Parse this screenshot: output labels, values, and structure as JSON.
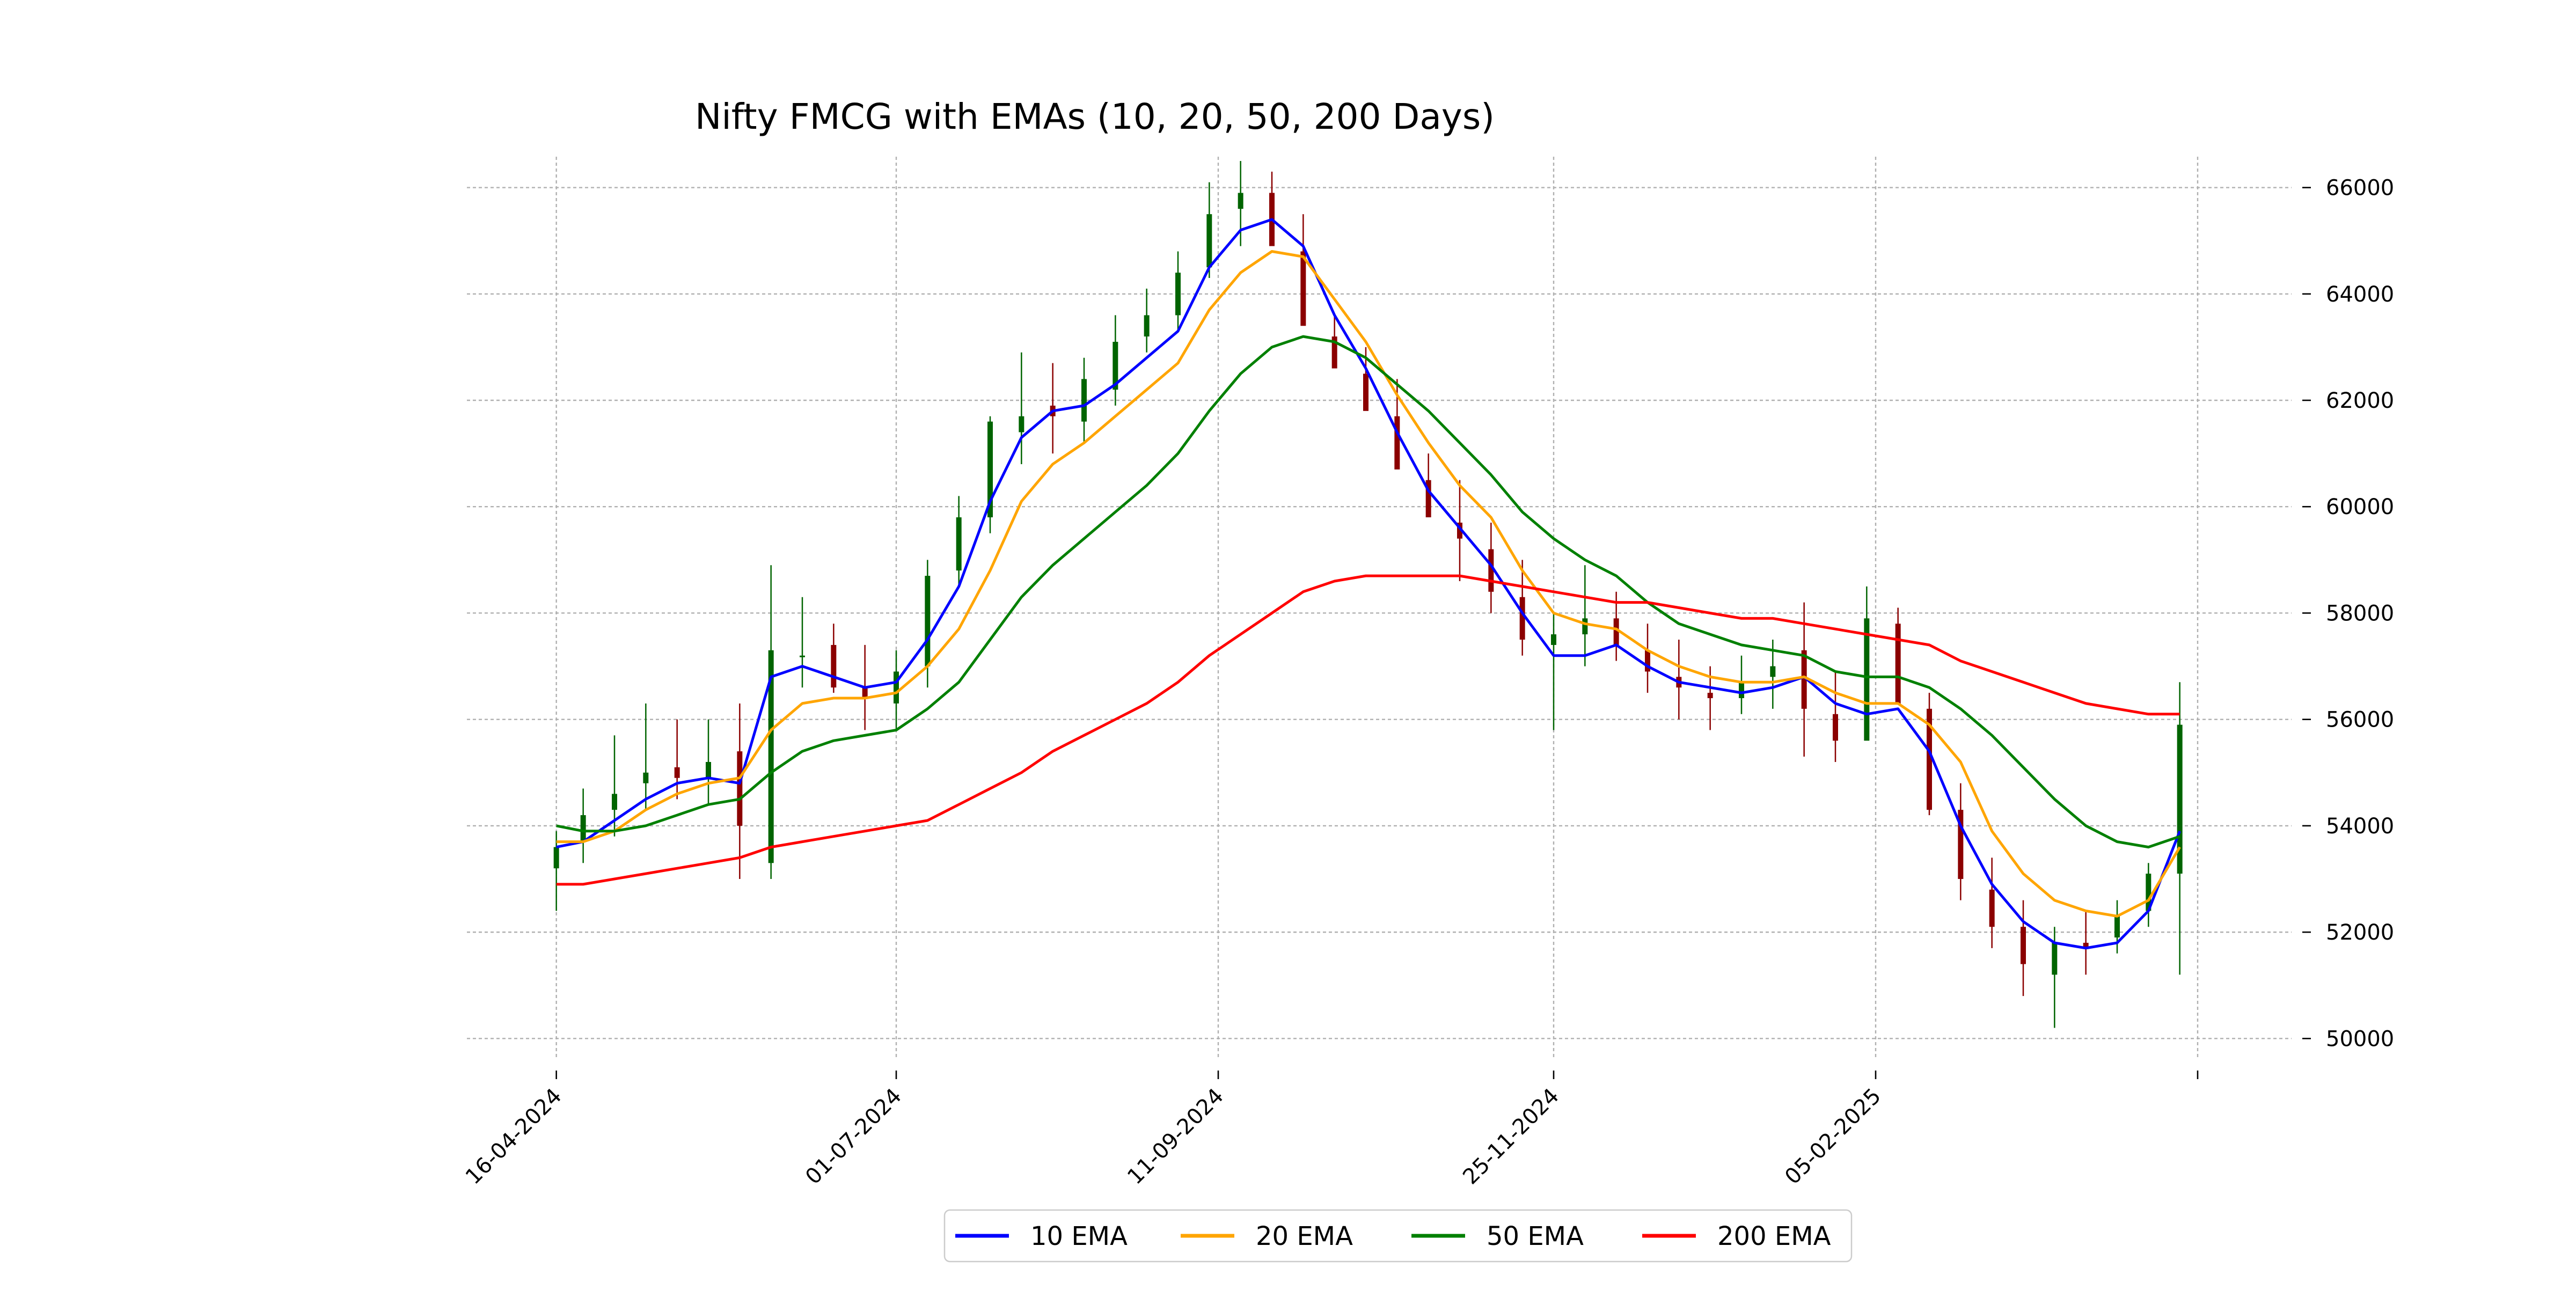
{
  "chart_data": {
    "type": "candlestick",
    "title": "Nifty FMCG with EMAs (10, 20, 50, 200 Days)",
    "xlabel": "",
    "ylabel": "",
    "ylim": [
      49600,
      66500
    ],
    "y_ticks": [
      50000,
      52000,
      54000,
      56000,
      58000,
      60000,
      62000,
      64000,
      66000
    ],
    "y_tick_labels": [
      "50000",
      "52000",
      "54000",
      "56000",
      "58000",
      "60000",
      "62000",
      "64000",
      "66000"
    ],
    "x_tick_labels": [
      "16-04-2024",
      "01-07-2024",
      "11-09-2024",
      "25-11-2024",
      "05-02-2025",
      ""
    ],
    "x_tick_dates": [
      "2024-04-16",
      "2024-07-01",
      "2024-09-11",
      "2024-11-25",
      "2025-02-05",
      "2025-04-18"
    ],
    "x_range": [
      "2024-03-27",
      "2025-05-09"
    ],
    "grid": true,
    "legend_position": "bottom-center",
    "candle_colors": {
      "up": "#006400",
      "down": "#8b0000"
    },
    "ohlc": {
      "dates": [
        "2024-04-16",
        "2024-04-22",
        "2024-04-29",
        "2024-05-06",
        "2024-05-13",
        "2024-05-20",
        "2024-05-27",
        "2024-06-03",
        "2024-06-10",
        "2024-06-17",
        "2024-06-24",
        "2024-07-01",
        "2024-07-08",
        "2024-07-15",
        "2024-07-22",
        "2024-07-29",
        "2024-08-05",
        "2024-08-12",
        "2024-08-19",
        "2024-08-26",
        "2024-09-02",
        "2024-09-09",
        "2024-09-16",
        "2024-09-23",
        "2024-09-30",
        "2024-10-07",
        "2024-10-14",
        "2024-10-21",
        "2024-10-28",
        "2024-11-04",
        "2024-11-11",
        "2024-11-18",
        "2024-11-25",
        "2024-12-02",
        "2024-12-09",
        "2024-12-16",
        "2024-12-23",
        "2024-12-30",
        "2025-01-06",
        "2025-01-13",
        "2025-01-20",
        "2025-01-27",
        "2025-02-03",
        "2025-02-10",
        "2025-02-17",
        "2025-02-24",
        "2025-03-03",
        "2025-03-10",
        "2025-03-17",
        "2025-03-24",
        "2025-03-31",
        "2025-04-07",
        "2025-04-14"
      ],
      "open": [
        53200,
        53700,
        54300,
        54800,
        55100,
        54900,
        55400,
        53300,
        57200,
        57400,
        56600,
        56300,
        57000,
        58800,
        59800,
        61400,
        61900,
        61600,
        62200,
        63200,
        63600,
        64500,
        65600,
        65900,
        64800,
        63200,
        62500,
        61700,
        60500,
        59700,
        59200,
        58300,
        57400,
        57600,
        57900,
        57300,
        56800,
        56500,
        56400,
        56800,
        57300,
        56100,
        55600,
        57800,
        56200,
        54300,
        52800,
        52100,
        51200,
        51800,
        51900,
        52400,
        53100
      ],
      "high": [
        53900,
        54700,
        55700,
        56300,
        56000,
        56000,
        56300,
        58900,
        58300,
        57800,
        57400,
        57300,
        59000,
        60200,
        61700,
        62900,
        62700,
        62800,
        63600,
        64100,
        64800,
        66100,
        66500,
        66300,
        65500,
        63600,
        63000,
        62400,
        61000,
        60500,
        59700,
        59000,
        58000,
        58900,
        58400,
        57800,
        57500,
        57000,
        57200,
        57500,
        58200,
        56900,
        58500,
        58100,
        56500,
        54800,
        53400,
        52600,
        52100,
        52400,
        52600,
        53300,
        56700
      ],
      "low": [
        52400,
        53300,
        53800,
        54300,
        54500,
        54400,
        53000,
        53000,
        56600,
        56500,
        55800,
        55800,
        56600,
        58500,
        59500,
        60800,
        61000,
        61200,
        61900,
        62900,
        63300,
        64300,
        64900,
        65000,
        63800,
        62700,
        62100,
        61200,
        59800,
        58600,
        58000,
        57200,
        55800,
        57000,
        57100,
        56500,
        56000,
        55800,
        56100,
        56200,
        55300,
        55200,
        55700,
        56900,
        54200,
        52600,
        51700,
        50800,
        50200,
        51200,
        51600,
        52100,
        51200
      ],
      "close": [
        53600,
        54200,
        54600,
        55000,
        54900,
        55200,
        54000,
        57300,
        57200,
        56600,
        56400,
        56900,
        58700,
        59800,
        61600,
        61700,
        61700,
        62400,
        63100,
        63600,
        64400,
        65500,
        65900,
        64900,
        63400,
        62600,
        61800,
        60700,
        59800,
        59400,
        58400,
        57500,
        57600,
        57900,
        57400,
        56900,
        56600,
        56400,
        56700,
        57000,
        56200,
        55600,
        57900,
        56300,
        54300,
        53000,
        52100,
        51400,
        51800,
        51700,
        52300,
        53100,
        55900
      ]
    },
    "series": [
      {
        "name": "10 EMA",
        "color": "#0000ff",
        "values": [
          53600,
          53700,
          54100,
          54500,
          54800,
          54900,
          54800,
          56800,
          57000,
          56800,
          56600,
          56700,
          57500,
          58500,
          60100,
          61300,
          61800,
          61900,
          62300,
          62800,
          63300,
          64500,
          65200,
          65400,
          64900,
          63600,
          62600,
          61400,
          60300,
          59600,
          58900,
          58000,
          57200,
          57200,
          57400,
          57000,
          56700,
          56600,
          56500,
          56600,
          56800,
          56300,
          56100,
          56200,
          55400,
          54000,
          52900,
          52200,
          51800,
          51700,
          51800,
          52400,
          53900
        ]
      },
      {
        "name": "20 EMA",
        "color": "#ffa500",
        "values": [
          53700,
          53700,
          53900,
          54300,
          54600,
          54800,
          54900,
          55800,
          56300,
          56400,
          56400,
          56500,
          57000,
          57700,
          58800,
          60100,
          60800,
          61200,
          61700,
          62200,
          62700,
          63700,
          64400,
          64800,
          64700,
          63900,
          63100,
          62100,
          61200,
          60400,
          59800,
          58800,
          58000,
          57800,
          57700,
          57300,
          57000,
          56800,
          56700,
          56700,
          56800,
          56500,
          56300,
          56300,
          55900,
          55200,
          53900,
          53100,
          52600,
          52400,
          52300,
          52600,
          53600
        ]
      },
      {
        "name": "50 EMA",
        "color": "#008000",
        "values": [
          54000,
          53900,
          53900,
          54000,
          54200,
          54400,
          54500,
          55000,
          55400,
          55600,
          55700,
          55800,
          56200,
          56700,
          57500,
          58300,
          58900,
          59400,
          59900,
          60400,
          61000,
          61800,
          62500,
          63000,
          63200,
          63100,
          62800,
          62300,
          61800,
          61200,
          60600,
          59900,
          59400,
          59000,
          58700,
          58200,
          57800,
          57600,
          57400,
          57300,
          57200,
          56900,
          56800,
          56800,
          56600,
          56200,
          55700,
          55100,
          54500,
          54000,
          53700,
          53600,
          53800
        ]
      },
      {
        "name": "200 EMA",
        "color": "#ff0000",
        "values": [
          52900,
          52900,
          53000,
          53100,
          53200,
          53300,
          53400,
          53600,
          53700,
          53800,
          53900,
          54000,
          54100,
          54400,
          54700,
          55000,
          55400,
          55700,
          56000,
          56300,
          56700,
          57200,
          57600,
          58000,
          58400,
          58600,
          58700,
          58700,
          58700,
          58700,
          58600,
          58500,
          58400,
          58300,
          58200,
          58200,
          58100,
          58000,
          57900,
          57900,
          57800,
          57700,
          57600,
          57500,
          57400,
          57100,
          56900,
          56700,
          56500,
          56300,
          56200,
          56100,
          56100
        ]
      }
    ]
  }
}
